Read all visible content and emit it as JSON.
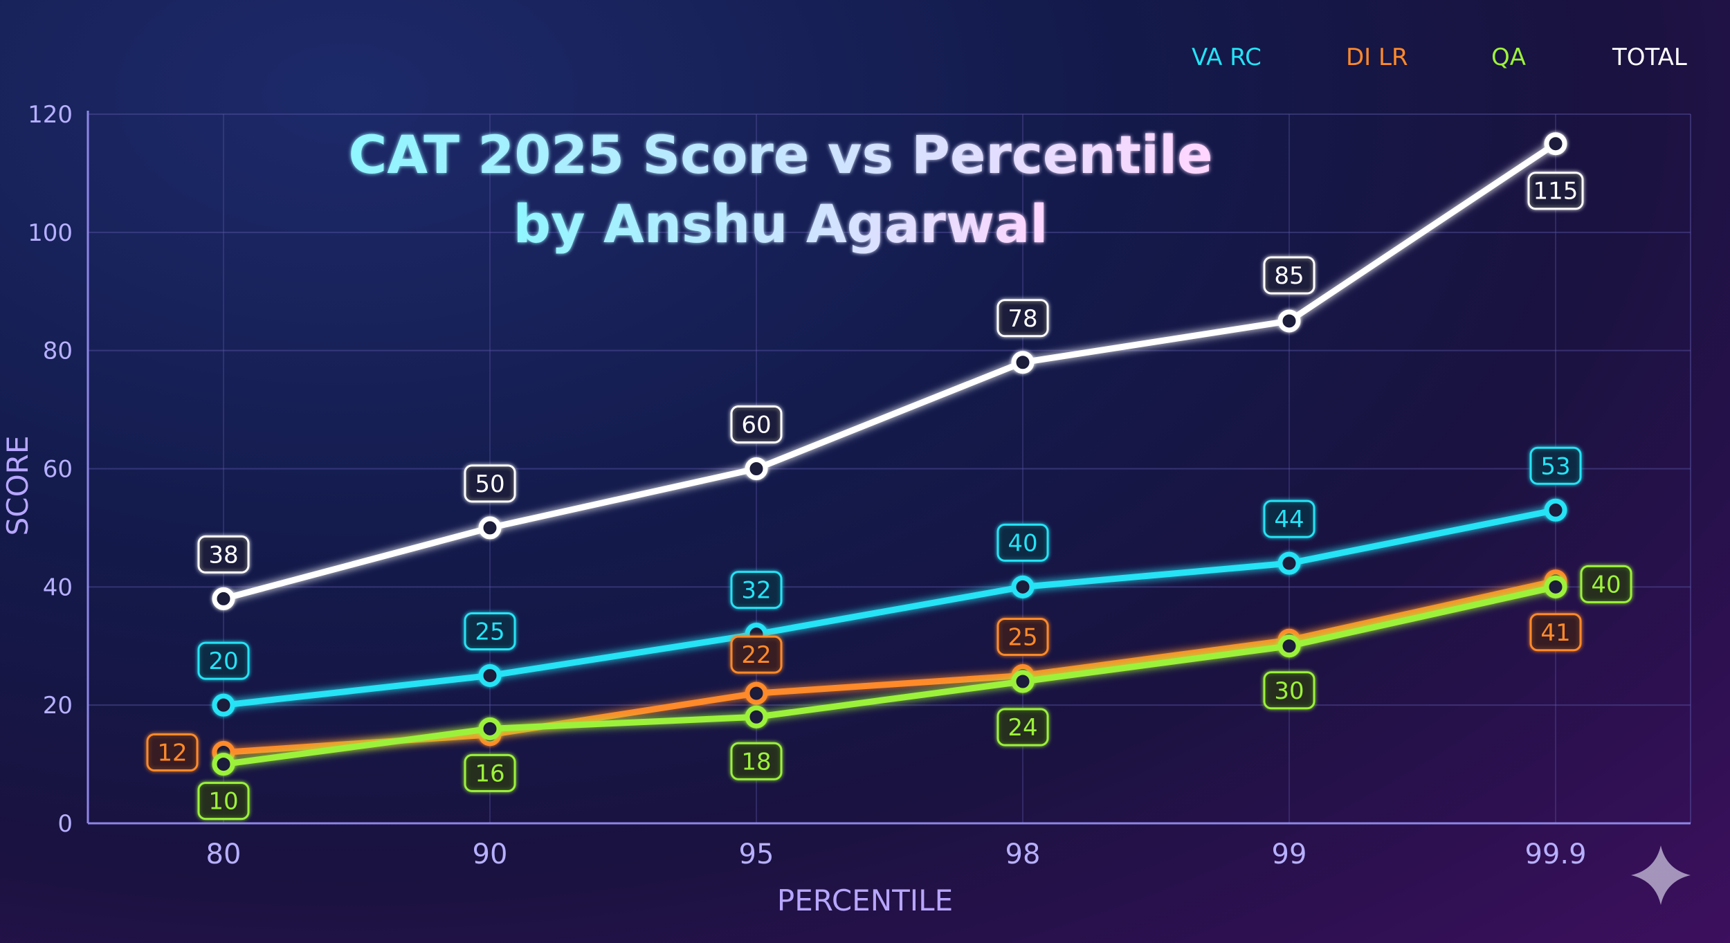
{
  "chart_data": {
    "type": "line",
    "title": "CAT 2025 Score vs Percentile",
    "subtitle": "by Anshu Agarwal",
    "xlabel": "PERCENTILE",
    "ylabel": "SCORE",
    "categories": [
      "80",
      "90",
      "95",
      "98",
      "99",
      "99.9"
    ],
    "ylim": [
      0,
      120
    ],
    "yticks": [
      0,
      20,
      40,
      60,
      80,
      100,
      120
    ],
    "grid": true,
    "legend_position": "top-right",
    "series": [
      {
        "name": "VA RC",
        "color": "#25e3f5",
        "values": [
          20,
          25,
          32,
          40,
          44,
          53
        ]
      },
      {
        "name": "DI LR",
        "color": "#ff8a2a",
        "values": [
          12,
          15,
          22,
          25,
          31,
          41
        ]
      },
      {
        "name": "QA",
        "color": "#9cf23a",
        "values": [
          10,
          16,
          18,
          24,
          30,
          40
        ]
      },
      {
        "name": "TOTAL",
        "color": "#ffffff",
        "values": [
          38,
          50,
          60,
          78,
          85,
          115
        ]
      }
    ],
    "data_labels": [
      {
        "series": "VA RC",
        "labels": [
          "20",
          "25",
          "32",
          "40",
          "44",
          "53"
        ]
      },
      {
        "series": "DI LR",
        "labels": [
          "12",
          null,
          "22",
          "25",
          null,
          "41"
        ]
      },
      {
        "series": "QA",
        "labels": [
          "10",
          "16",
          "18",
          "24",
          "30",
          "40"
        ]
      },
      {
        "series": "TOTAL",
        "labels": [
          "38",
          "50",
          "60",
          "78",
          "85",
          "115"
        ]
      }
    ]
  },
  "decor": {
    "watermark_icon": "sparkle-icon"
  }
}
